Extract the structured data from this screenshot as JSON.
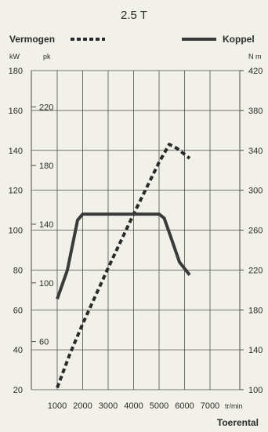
{
  "chart_data": {
    "type": "line",
    "title": "2.5 T",
    "xlabel": "Toerental",
    "x_unit": "tr/min",
    "x_ticks": [
      1000,
      2000,
      3000,
      4000,
      5000,
      6000,
      7000
    ],
    "xlim": [
      1000,
      7000
    ],
    "left_axis": {
      "unit": "kW",
      "ylim": [
        20,
        180
      ],
      "ticks": [
        20,
        40,
        60,
        80,
        100,
        120,
        140,
        160,
        180
      ],
      "secondary_unit": "pk",
      "secondary_ticks": [
        60,
        100,
        140,
        180,
        220
      ]
    },
    "right_axis": {
      "unit": "N m",
      "ylim": [
        100,
        420
      ],
      "ticks": [
        100,
        140,
        180,
        220,
        260,
        300,
        340,
        380,
        420
      ]
    },
    "grid": true,
    "legend": {
      "placement": "top"
    },
    "series": [
      {
        "name": "Vermogen",
        "axis": "left",
        "style": "dashed",
        "x": [
          1000,
          1500,
          2000,
          3000,
          4000,
          5000,
          5400,
          5700,
          6200
        ],
        "values": [
          21,
          38,
          53,
          81,
          108,
          134,
          143,
          141,
          136
        ]
      },
      {
        "name": "Koppel",
        "axis": "right",
        "style": "solid",
        "x": [
          1000,
          1400,
          1800,
          2000,
          3000,
          4000,
          5000,
          5200,
          5500,
          5800,
          6200
        ],
        "values": [
          191,
          220,
          270,
          276,
          276,
          276,
          276,
          272,
          250,
          228,
          215
        ]
      }
    ]
  }
}
